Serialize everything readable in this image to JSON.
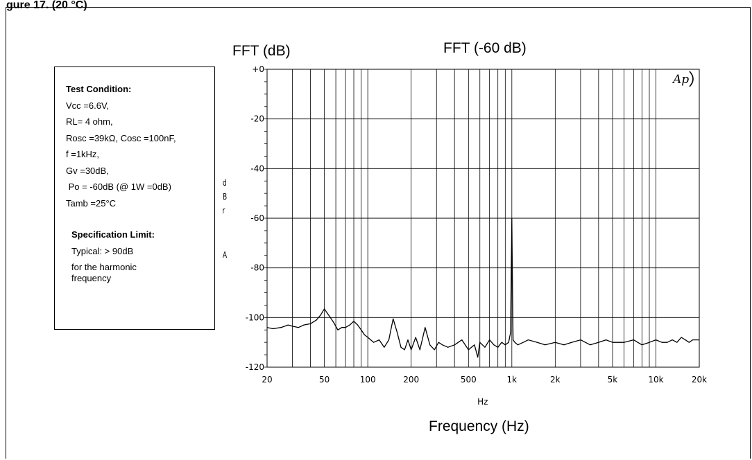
{
  "figure": {
    "header": "gure 17. (20 °C)"
  },
  "test_condition": {
    "title": "Test Condition:",
    "lines": [
      "Vcc =6.6V,",
      "RL= 4 ohm,",
      "Rosc =39kΩ, Cosc =100nF,",
      "f =1kHz,",
      "Gv =30dB,",
      " Po = -60dB (@ 1W =0dB)",
      "Tamb =25°C"
    ]
  },
  "spec_limit": {
    "title": "Specification Limit:",
    "lines": [
      "Typical: > 90dB",
      "for the harmonic",
      "frequency"
    ]
  },
  "labels": {
    "fft_db": "FFT (dB)",
    "fft_60": "FFT (-60 dB)",
    "x_unit": "Hz",
    "x_title": "Frequency (Hz)",
    "y_unit_letters": [
      "d",
      "B",
      "r",
      "",
      "A"
    ],
    "logo": "Ap"
  },
  "chart_data": {
    "type": "line",
    "title": "FFT (-60 dB)",
    "xlabel": "Frequency (Hz)",
    "ylabel": "dBr A",
    "x_scale": "log",
    "xlim": [
      20,
      20000
    ],
    "ylim": [
      -120,
      0
    ],
    "grid": true,
    "x_ticks": [
      {
        "value": 20,
        "label": "20"
      },
      {
        "value": 50,
        "label": "50"
      },
      {
        "value": 100,
        "label": "100"
      },
      {
        "value": 200,
        "label": "200"
      },
      {
        "value": 500,
        "label": "500"
      },
      {
        "value": 1000,
        "label": "1k"
      },
      {
        "value": 2000,
        "label": "2k"
      },
      {
        "value": 5000,
        "label": "5k"
      },
      {
        "value": 10000,
        "label": "10k"
      },
      {
        "value": 20000,
        "label": "20k"
      }
    ],
    "y_ticks": [
      {
        "value": 0,
        "label": "+0"
      },
      {
        "value": -20,
        "label": "-20"
      },
      {
        "value": -40,
        "label": "-40"
      },
      {
        "value": -60,
        "label": "-60"
      },
      {
        "value": -80,
        "label": "-80"
      },
      {
        "value": -100,
        "label": "-100"
      },
      {
        "value": -120,
        "label": "-120"
      }
    ],
    "series": [
      {
        "color": "#000000",
        "x": [
          20,
          22,
          25,
          28,
          30,
          33,
          36,
          40,
          44,
          47,
          50,
          52,
          55,
          58,
          62,
          66,
          70,
          75,
          80,
          85,
          90,
          95,
          100,
          110,
          120,
          130,
          140,
          150,
          160,
          170,
          180,
          190,
          200,
          215,
          230,
          250,
          270,
          290,
          310,
          330,
          360,
          400,
          450,
          500,
          550,
          580,
          600,
          650,
          700,
          750,
          800,
          850,
          900,
          950,
          980,
          990,
          1000,
          1010,
          1020,
          1050,
          1100,
          1200,
          1300,
          1500,
          1700,
          2000,
          2300,
          2600,
          3000,
          3500,
          4000,
          4500,
          5000,
          6000,
          7000,
          8000,
          9000,
          10000,
          11000,
          12000,
          13000,
          14000,
          15000,
          16000,
          17000,
          18000,
          20000
        ],
        "y": [
          -104,
          -104.5,
          -104,
          -103,
          -103.5,
          -104,
          -103,
          -102.5,
          -101,
          -99,
          -96.5,
          -98,
          -100,
          -102,
          -105,
          -104,
          -104,
          -103,
          -101.5,
          -103,
          -105,
          -107,
          -108,
          -110,
          -109,
          -112,
          -109,
          -100.5,
          -106,
          -112,
          -113,
          -109,
          -113,
          -108,
          -113,
          -104,
          -111,
          -113,
          -110,
          -111,
          -112,
          -111,
          -109,
          -113,
          -111,
          -116,
          -110,
          -112,
          -109,
          -111,
          -112,
          -110,
          -111,
          -110,
          -106,
          -83,
          -60,
          -87,
          -109,
          -110,
          -111,
          -110,
          -109,
          -110,
          -111,
          -110,
          -111,
          -110,
          -109,
          -111,
          -110,
          -109,
          -110,
          -110,
          -109,
          -111,
          -110,
          -109,
          -110,
          -110,
          -109,
          -110,
          -108,
          -109,
          -110,
          -109,
          -109
        ]
      }
    ]
  }
}
